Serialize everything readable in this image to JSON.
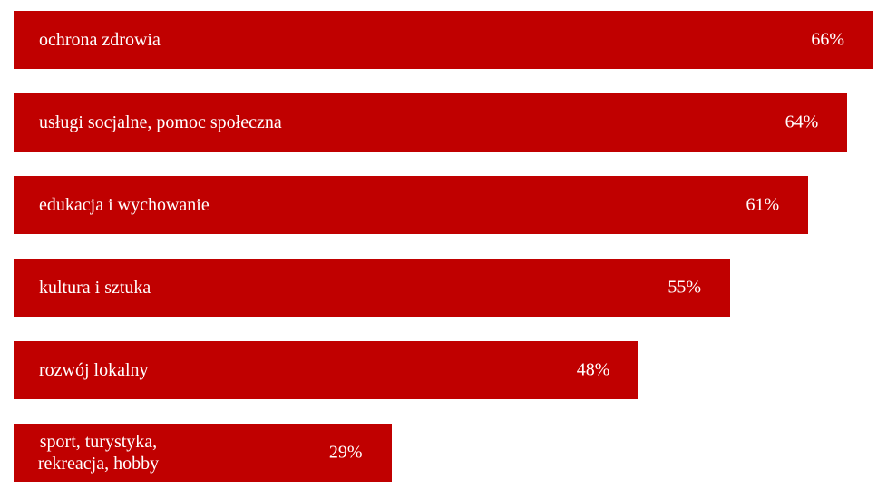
{
  "chart_data": {
    "type": "bar",
    "orientation": "horizontal",
    "categories": [
      "ochrona zdrowia",
      "usługi socjalne, pomoc społeczna",
      "edukacja i wychowanie",
      "kultura i sztuka",
      "rozwój lokalny",
      "sport, turystyka, rekreacja, hobby"
    ],
    "values": [
      66,
      64,
      61,
      55,
      48,
      29
    ],
    "value_labels": [
      "66%",
      "64%",
      "61%",
      "55%",
      "48%",
      "29%"
    ],
    "color": "#c00000",
    "xlim": [
      0,
      66
    ]
  }
}
